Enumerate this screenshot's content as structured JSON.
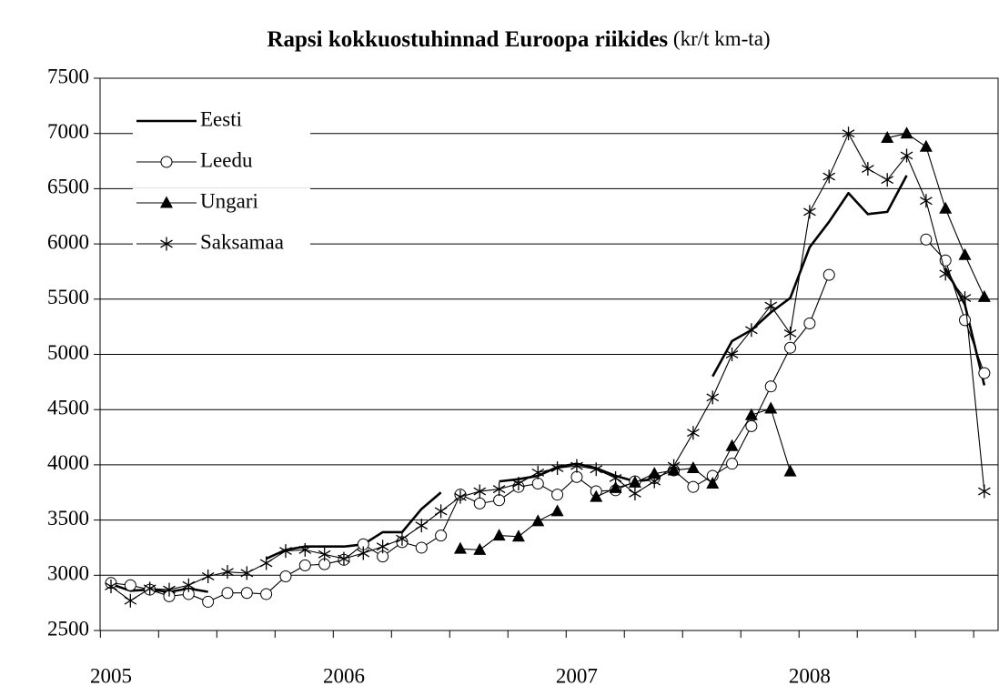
{
  "chart_data": {
    "type": "line",
    "title": "Rapsi kokkuostuhinnad Euroopa riikides",
    "unit": "(kr/t km-ta)",
    "categories": [
      "2005",
      null,
      null,
      null,
      null,
      null,
      null,
      null,
      null,
      null,
      null,
      null,
      "2006",
      null,
      null,
      null,
      null,
      null,
      null,
      null,
      null,
      null,
      null,
      null,
      "2007",
      null,
      null,
      null,
      null,
      null,
      null,
      null,
      null,
      null,
      null,
      null,
      "2008",
      null,
      null,
      null,
      null,
      null,
      null,
      null,
      null,
      null
    ],
    "ylim": [
      2500,
      7500
    ],
    "yticks": [
      2500,
      3000,
      3500,
      4000,
      4500,
      5000,
      5500,
      6000,
      6500,
      7000,
      7500
    ],
    "grid": true,
    "legend": "upper left",
    "series": [
      {
        "name": "Eesti",
        "color": "#000000",
        "marker": "none",
        "values": [
          2920,
          2860,
          2870,
          2850,
          2880,
          2850,
          null,
          null,
          3150,
          3230,
          3260,
          3260,
          3260,
          3280,
          3390,
          3390,
          3600,
          3750,
          null,
          null,
          3850,
          3870,
          3900,
          3980,
          4010,
          3970,
          3900,
          3850,
          3870,
          null,
          null,
          4800,
          5120,
          5220,
          5380,
          5510,
          5970,
          6200,
          6460,
          6270,
          6290,
          6620,
          null,
          5780,
          5450,
          4720
        ]
      },
      {
        "name": "Leedu",
        "color": "#000000",
        "marker": "circle",
        "values": [
          2930,
          2910,
          2870,
          2810,
          2830,
          2760,
          2840,
          2840,
          2830,
          2990,
          3090,
          3100,
          3140,
          3280,
          3170,
          3300,
          3250,
          3360,
          3730,
          3650,
          3680,
          3800,
          3830,
          3730,
          3890,
          3760,
          3770,
          3850,
          3880,
          3950,
          3800,
          3900,
          4010,
          4350,
          4710,
          5060,
          5280,
          5720,
          null,
          null,
          null,
          null,
          6040,
          5850,
          5310,
          4830
        ]
      },
      {
        "name": "Ungari",
        "color": "#000000",
        "marker": "triangle",
        "values": [
          null,
          null,
          null,
          null,
          null,
          null,
          null,
          null,
          null,
          null,
          null,
          null,
          null,
          null,
          null,
          null,
          null,
          null,
          3240,
          3230,
          3360,
          3350,
          3490,
          3580,
          null,
          3710,
          3790,
          3840,
          3920,
          3950,
          3970,
          3830,
          4170,
          4450,
          4510,
          3940,
          null,
          null,
          null,
          null,
          6960,
          7000,
          6880,
          6320,
          5900,
          5520
        ]
      },
      {
        "name": "Saksamaa",
        "color": "#000000",
        "marker": "star",
        "values": [
          2900,
          2770,
          2880,
          2870,
          2910,
          2990,
          3030,
          3020,
          3110,
          3220,
          3230,
          3190,
          3150,
          3200,
          3260,
          3330,
          3450,
          3580,
          3710,
          3760,
          3780,
          3830,
          3930,
          3970,
          3990,
          3960,
          3880,
          3740,
          3850,
          3990,
          4290,
          4610,
          5000,
          5220,
          5440,
          5190,
          6290,
          6610,
          7000,
          6680,
          6580,
          6800,
          6390,
          5730,
          5510,
          3760
        ]
      }
    ]
  }
}
